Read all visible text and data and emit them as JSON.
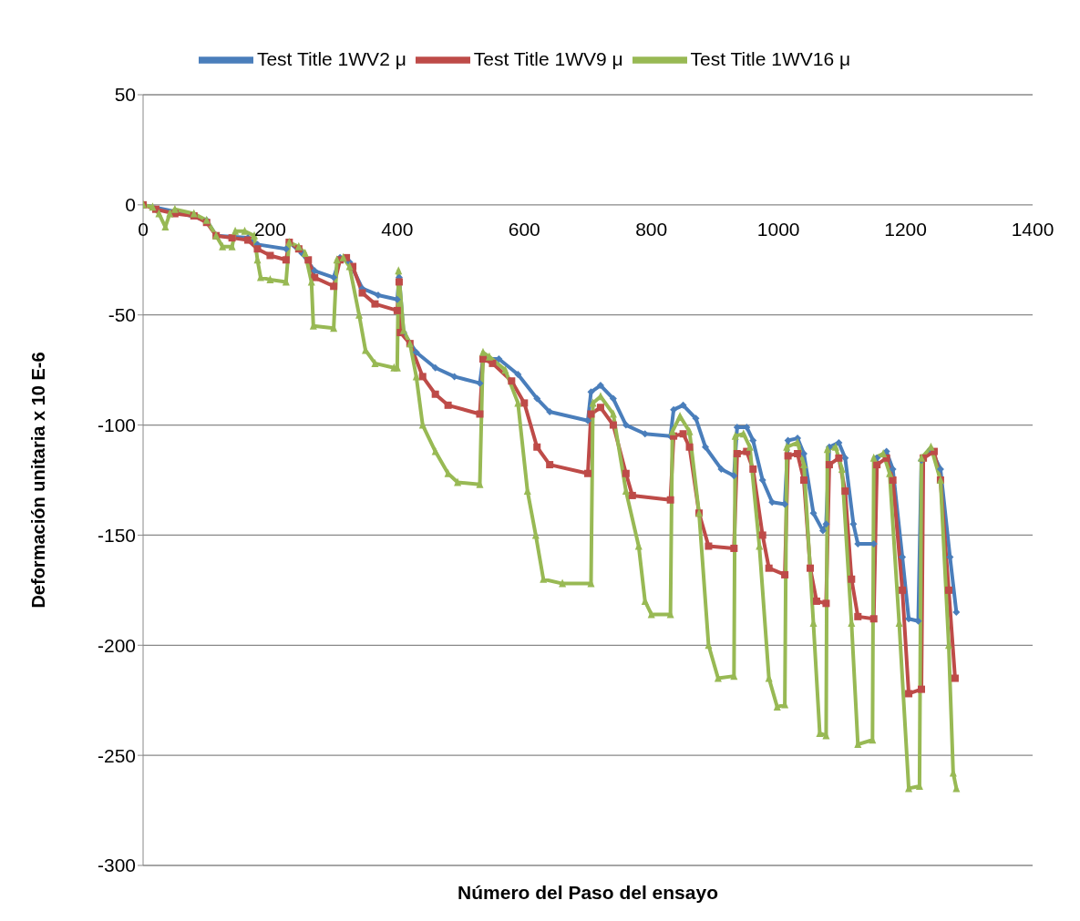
{
  "chart_data": {
    "type": "line",
    "xlabel": "Número del Paso del ensayo",
    "ylabel": "Deformación unitaria x 10 E-6",
    "xlim": [
      0,
      1400
    ],
    "xticks": [
      0,
      200,
      400,
      600,
      800,
      1000,
      1200,
      1400
    ],
    "ylim": [
      -300,
      50
    ],
    "yticks": [
      -300,
      -250,
      -200,
      -150,
      -100,
      -50,
      0,
      50
    ],
    "grid": "y",
    "legend": "top",
    "line_style": "solid",
    "series": [
      {
        "name": "Test Title 1WV2 μ",
        "color": "#4a7ebb",
        "marker": "diamond",
        "x": [
          0,
          50,
          100,
          115,
          165,
          180,
          225,
          230,
          250,
          270,
          300,
          310,
          325,
          345,
          370,
          400,
          403,
          410,
          430,
          460,
          490,
          530,
          535,
          560,
          590,
          620,
          640,
          700,
          705,
          720,
          740,
          760,
          790,
          830,
          835,
          850,
          870,
          885,
          910,
          930,
          935,
          950,
          960,
          975,
          990,
          1010,
          1015,
          1030,
          1040,
          1055,
          1070,
          1075,
          1080,
          1095,
          1105,
          1118,
          1125,
          1150,
          1155,
          1170,
          1180,
          1195,
          1205,
          1220,
          1225,
          1240,
          1255,
          1270,
          1280
        ],
        "values": [
          0,
          -3,
          -7,
          -14,
          -15,
          -18,
          -20,
          -17,
          -22,
          -30,
          -33,
          -24,
          -26,
          -38,
          -41,
          -43,
          -33,
          -58,
          -67,
          -74,
          -78,
          -81,
          -70,
          -70,
          -77,
          -88,
          -94,
          -98,
          -85,
          -82,
          -88,
          -100,
          -104,
          -105,
          -93,
          -91,
          -97,
          -110,
          -120,
          -123,
          -101,
          -101,
          -107,
          -125,
          -135,
          -136,
          -107,
          -106,
          -113,
          -140,
          -148,
          -145,
          -110,
          -108,
          -115,
          -145,
          -154,
          -154,
          -115,
          -112,
          -120,
          -160,
          -188,
          -189,
          -116,
          -111,
          -120,
          -160,
          -185
        ]
      },
      {
        "name": "Test Title 1WV9 μ",
        "color": "#be4b48",
        "marker": "square",
        "x": [
          0,
          20,
          50,
          80,
          100,
          115,
          140,
          165,
          180,
          200,
          225,
          230,
          245,
          260,
          270,
          300,
          310,
          320,
          330,
          345,
          365,
          400,
          403,
          405,
          420,
          440,
          460,
          480,
          530,
          535,
          550,
          580,
          600,
          620,
          640,
          700,
          705,
          720,
          740,
          760,
          770,
          830,
          835,
          850,
          860,
          875,
          890,
          930,
          935,
          950,
          960,
          975,
          985,
          1010,
          1015,
          1030,
          1040,
          1050,
          1060,
          1075,
          1080,
          1095,
          1105,
          1115,
          1125,
          1150,
          1155,
          1170,
          1180,
          1195,
          1205,
          1225,
          1228,
          1245,
          1255,
          1268,
          1278
        ],
        "values": [
          0,
          -2,
          -4,
          -5,
          -8,
          -14,
          -15,
          -16,
          -20,
          -23,
          -25,
          -17,
          -20,
          -25,
          -33,
          -37,
          -25,
          -24,
          -28,
          -40,
          -45,
          -48,
          -35,
          -58,
          -63,
          -78,
          -86,
          -91,
          -95,
          -70,
          -72,
          -80,
          -90,
          -110,
          -118,
          -122,
          -95,
          -92,
          -100,
          -122,
          -132,
          -134,
          -105,
          -104,
          -110,
          -140,
          -155,
          -156,
          -113,
          -112,
          -120,
          -150,
          -165,
          -168,
          -114,
          -113,
          -125,
          -165,
          -180,
          -181,
          -118,
          -115,
          -130,
          -170,
          -187,
          -188,
          -118,
          -115,
          -125,
          -175,
          -222,
          -220,
          -115,
          -112,
          -125,
          -175,
          -215
        ]
      },
      {
        "name": "Test Title 1WV16 μ",
        "color": "#98b954",
        "marker": "triangle",
        "x": [
          0,
          15,
          25,
          35,
          42,
          50,
          80,
          100,
          115,
          125,
          140,
          145,
          160,
          175,
          180,
          185,
          200,
          225,
          230,
          245,
          255,
          265,
          268,
          300,
          305,
          315,
          325,
          340,
          350,
          365,
          395,
          400,
          402,
          410,
          420,
          430,
          440,
          460,
          480,
          495,
          530,
          535,
          545,
          570,
          590,
          605,
          618,
          630,
          660,
          705,
          708,
          720,
          740,
          760,
          780,
          790,
          800,
          830,
          833,
          845,
          860,
          875,
          890,
          905,
          930,
          932,
          945,
          955,
          970,
          985,
          998,
          1010,
          1013,
          1030,
          1040,
          1055,
          1065,
          1075,
          1077,
          1090,
          1100,
          1115,
          1125,
          1148,
          1150,
          1165,
          1175,
          1190,
          1205,
          1222,
          1225,
          1240,
          1255,
          1268,
          1275,
          1280
        ],
        "values": [
          0,
          -1,
          -4,
          -10,
          -4,
          -2,
          -4,
          -7,
          -14,
          -19,
          -19,
          -12,
          -12,
          -14,
          -25,
          -33,
          -34,
          -35,
          -17,
          -19,
          -22,
          -35,
          -55,
          -56,
          -25,
          -24,
          -28,
          -50,
          -66,
          -72,
          -74,
          -74,
          -30,
          -57,
          -63,
          -78,
          -100,
          -112,
          -122,
          -126,
          -127,
          -67,
          -69,
          -75,
          -90,
          -130,
          -150,
          -170,
          -172,
          -172,
          -90,
          -87,
          -95,
          -130,
          -155,
          -180,
          -186,
          -186,
          -103,
          -96,
          -103,
          -140,
          -200,
          -215,
          -214,
          -105,
          -104,
          -110,
          -155,
          -215,
          -228,
          -227,
          -110,
          -108,
          -118,
          -190,
          -240,
          -241,
          -111,
          -110,
          -120,
          -190,
          -245,
          -243,
          -115,
          -113,
          -122,
          -190,
          -265,
          -264,
          -115,
          -110,
          -125,
          -200,
          -258,
          -265
        ]
      }
    ]
  }
}
